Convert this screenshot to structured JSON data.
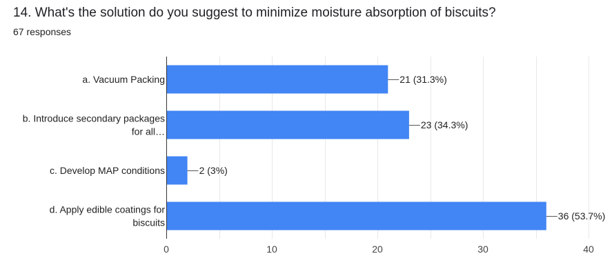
{
  "question": {
    "title": "14. What's the solution do you suggest to minimize moisture absorption of biscuits?",
    "responses": "67 responses"
  },
  "colors": {
    "bar": "#4285f4",
    "grid": "#e8e8e8",
    "axis": "#333333"
  },
  "chart_data": {
    "type": "bar",
    "orientation": "horizontal",
    "categories": [
      [
        "a. Vacuum Packing"
      ],
      [
        "b. Introduce secondary packages",
        "for all…"
      ],
      [
        "c. Develop MAP conditions"
      ],
      [
        "d. Apply edible coatings for",
        "biscuits"
      ]
    ],
    "values": [
      21,
      23,
      2,
      36
    ],
    "data_labels": [
      "21 (31.3%)",
      "23 (34.3%)",
      "2 (3%)",
      "36 (53.7%)"
    ],
    "xlim": [
      0,
      40
    ],
    "ticks": [
      0,
      10,
      20,
      30,
      40
    ],
    "grid": true
  }
}
